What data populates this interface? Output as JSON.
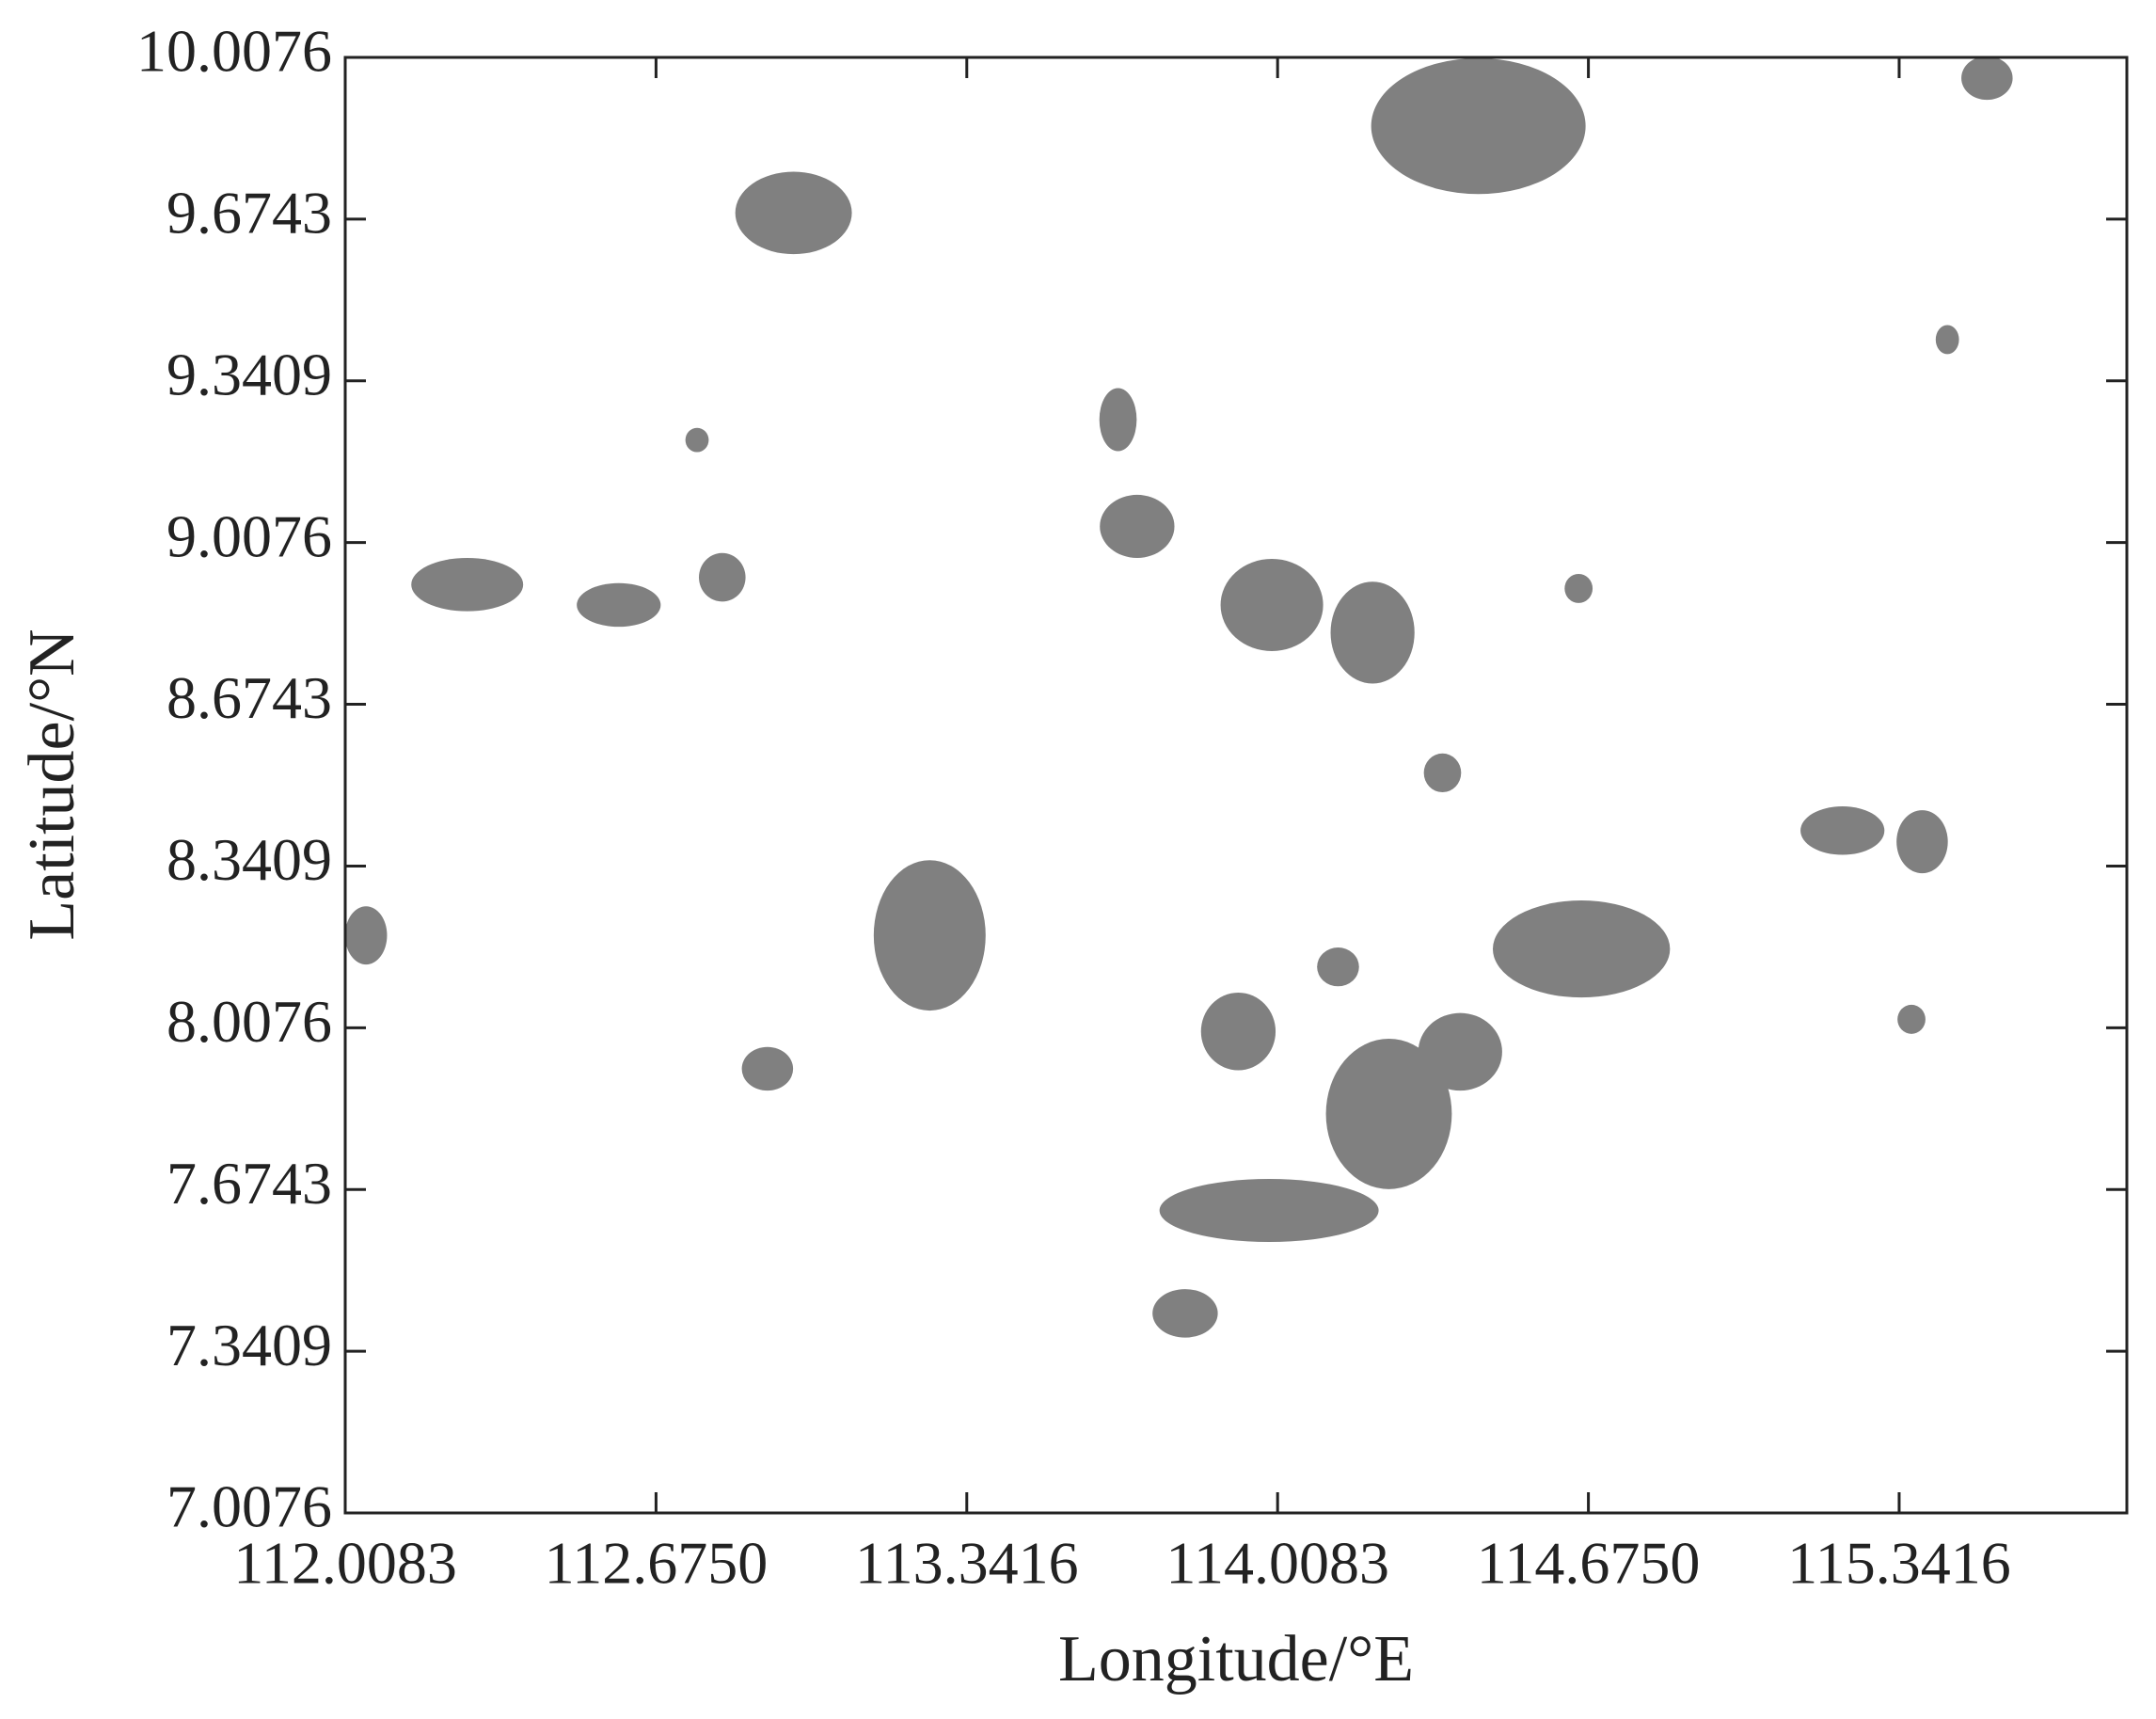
{
  "chart_data": {
    "type": "region",
    "x_label": "Longitude/°E",
    "y_label": "Latitude/°N",
    "color": "#808080",
    "xlim": [
      112.0083,
      115.83
    ],
    "ylim": [
      7.0076,
      10.0076
    ],
    "xticks": [
      112.0083,
      {
        "value": 112.675,
        "label": "112.6750"
      },
      113.3416,
      114.0083,
      {
        "value": 114.675,
        "label": "114.6750"
      },
      115.3416
    ],
    "yticks": [
      7.0076,
      7.3409,
      7.6743,
      8.0076,
      8.3409,
      8.6743,
      9.0076,
      9.3409,
      9.6743,
      10.0076
    ],
    "regions": [
      {
        "lon": 114.439,
        "lat": 9.866,
        "width": 0.46,
        "height": 0.28
      },
      {
        "lon": 115.53,
        "lat": 9.965,
        "width": 0.11,
        "height": 0.09
      },
      {
        "lon": 112.97,
        "lat": 9.687,
        "width": 0.25,
        "height": 0.17
      },
      {
        "lon": 115.445,
        "lat": 9.426,
        "width": 0.05,
        "height": 0.06
      },
      {
        "lon": 113.666,
        "lat": 9.261,
        "width": 0.08,
        "height": 0.13
      },
      {
        "lon": 112.763,
        "lat": 9.219,
        "width": 0.05,
        "height": 0.05
      },
      {
        "lon": 113.707,
        "lat": 9.041,
        "width": 0.16,
        "height": 0.13
      },
      {
        "lon": 112.27,
        "lat": 8.921,
        "width": 0.24,
        "height": 0.11
      },
      {
        "lon": 112.595,
        "lat": 8.879,
        "width": 0.18,
        "height": 0.09
      },
      {
        "lon": 112.817,
        "lat": 8.936,
        "width": 0.1,
        "height": 0.1
      },
      {
        "lon": 113.996,
        "lat": 8.879,
        "width": 0.22,
        "height": 0.19
      },
      {
        "lon": 114.212,
        "lat": 8.822,
        "width": 0.18,
        "height": 0.21
      },
      {
        "lon": 114.654,
        "lat": 8.913,
        "width": 0.06,
        "height": 0.06
      },
      {
        "lon": 114.362,
        "lat": 8.533,
        "width": 0.08,
        "height": 0.08
      },
      {
        "lon": 115.22,
        "lat": 8.414,
        "width": 0.18,
        "height": 0.1
      },
      {
        "lon": 115.391,
        "lat": 8.391,
        "width": 0.11,
        "height": 0.13
      },
      {
        "lon": 112.053,
        "lat": 8.198,
        "width": 0.09,
        "height": 0.12
      },
      {
        "lon": 113.262,
        "lat": 8.198,
        "width": 0.24,
        "height": 0.31
      },
      {
        "lon": 114.66,
        "lat": 8.17,
        "width": 0.38,
        "height": 0.2
      },
      {
        "lon": 114.138,
        "lat": 8.133,
        "width": 0.09,
        "height": 0.08
      },
      {
        "lon": 113.924,
        "lat": 8.0,
        "width": 0.16,
        "height": 0.16
      },
      {
        "lon": 114.4,
        "lat": 7.958,
        "width": 0.18,
        "height": 0.16
      },
      {
        "lon": 112.914,
        "lat": 7.923,
        "width": 0.11,
        "height": 0.09
      },
      {
        "lon": 115.368,
        "lat": 8.025,
        "width": 0.06,
        "height": 0.06
      },
      {
        "lon": 113.99,
        "lat": 7.631,
        "width": 0.47,
        "height": 0.13
      },
      {
        "lon": 114.247,
        "lat": 7.83,
        "width": 0.27,
        "height": 0.31
      },
      {
        "lon": 113.81,
        "lat": 7.419,
        "width": 0.14,
        "height": 0.1
      }
    ]
  }
}
